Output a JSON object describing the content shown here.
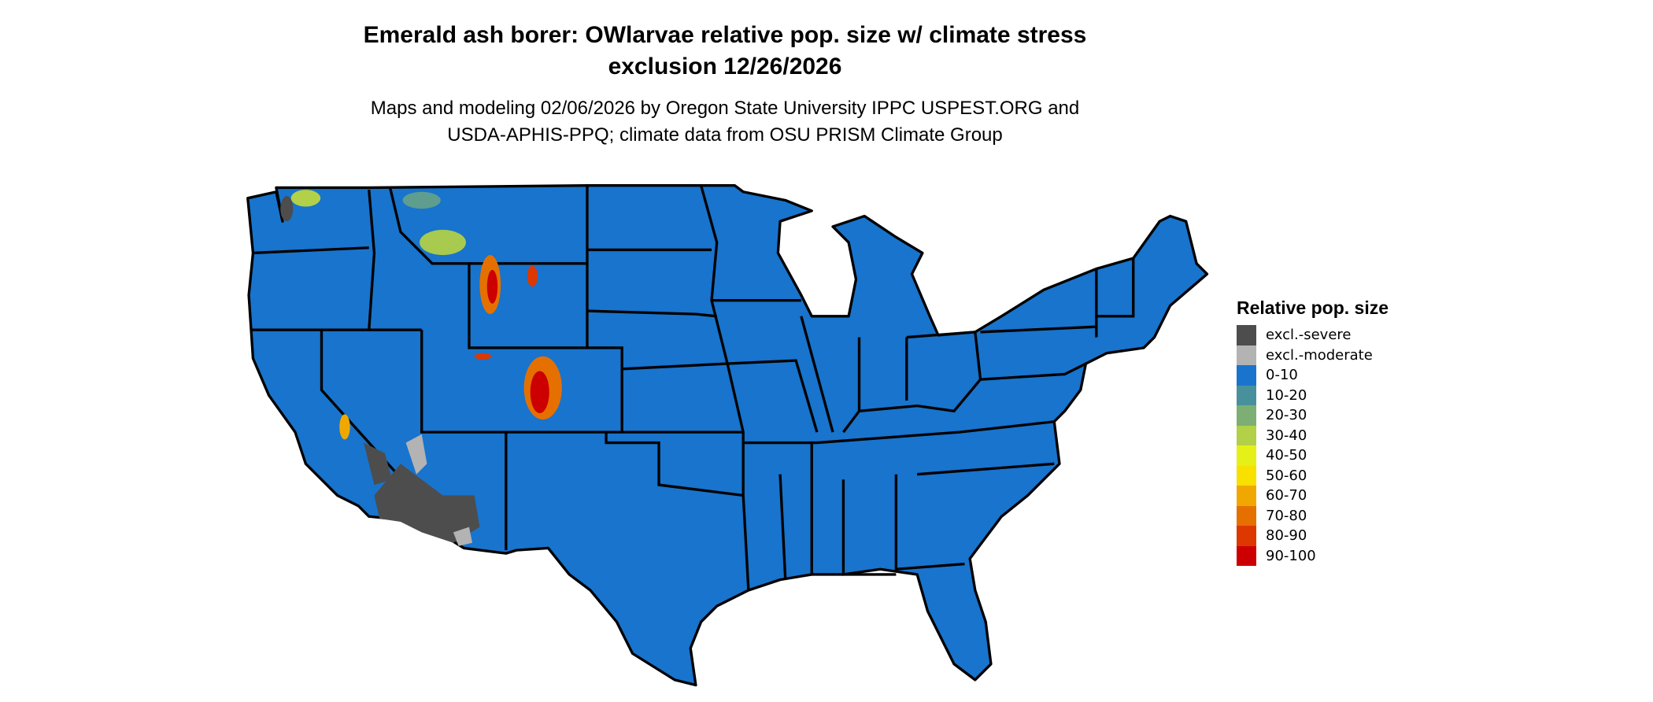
{
  "title_line1": "Emerald ash borer: OWlarvae relative pop. size w/ climate stress",
  "title_line2": "exclusion 12/26/2026",
  "subtitle_line1": "Maps and modeling 02/06/2026 by Oregon State University IPPC USPEST.ORG and",
  "subtitle_line2": "USDA-APHIS-PPQ; climate data from OSU PRISM Climate Group",
  "map": {
    "region": "Contiguous United States",
    "base_color": "#1874CD",
    "border_color": "#000000"
  },
  "legend": {
    "title": "Relative pop. size",
    "items": [
      {
        "label": "excl.-severe",
        "color": "#4D4D4D"
      },
      {
        "label": "excl.-moderate",
        "color": "#B3B3B3"
      },
      {
        "label": "0-10",
        "color": "#1874CD"
      },
      {
        "label": "10-20",
        "color": "#48919C"
      },
      {
        "label": "20-30",
        "color": "#7DAF74"
      },
      {
        "label": "30-40",
        "color": "#B2D048"
      },
      {
        "label": "40-50",
        "color": "#E5F018"
      },
      {
        "label": "50-60",
        "color": "#F8E000"
      },
      {
        "label": "60-70",
        "color": "#F0A800"
      },
      {
        "label": "70-80",
        "color": "#E57000"
      },
      {
        "label": "80-90",
        "color": "#DC3800"
      },
      {
        "label": "90-100",
        "color": "#CC0000"
      }
    ]
  }
}
